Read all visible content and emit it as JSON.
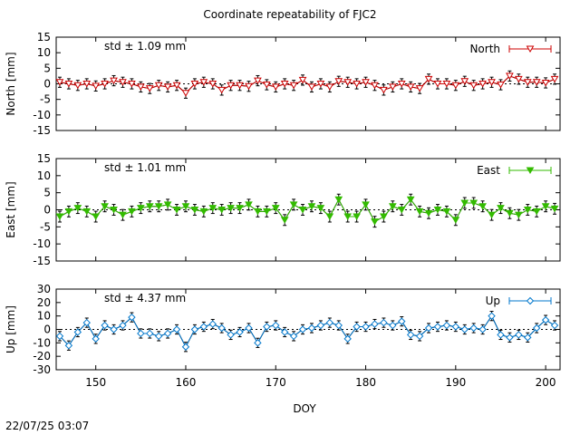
{
  "title": "Coordinate repeatability of FJC2",
  "timestamp": "22/07/25 03:07",
  "chart_data": [
    {
      "type": "line",
      "ylabel": "North [mm]",
      "ylim": [
        -15,
        15
      ],
      "yticks": [
        "15",
        "10",
        "5",
        "0",
        "-5",
        "-10",
        "-15"
      ],
      "xlim": [
        145.6,
        201.6
      ],
      "std_label": "std ± 1.09 mm",
      "legend": "North",
      "legend_position": "top-right",
      "color": "#cc0000",
      "marker": "triangle-down-open",
      "grid": false,
      "zero_line": true,
      "series": [
        {
          "name": "North",
          "x": [
            146,
            147,
            148,
            149,
            150,
            151,
            152,
            153,
            154,
            155,
            156,
            157,
            158,
            159,
            160,
            161,
            162,
            163,
            164,
            165,
            166,
            167,
            168,
            169,
            170,
            171,
            172,
            173,
            174,
            175,
            176,
            177,
            178,
            179,
            180,
            181,
            182,
            183,
            184,
            185,
            186,
            187,
            188,
            189,
            190,
            191,
            192,
            193,
            194,
            195,
            196,
            197,
            198,
            199,
            200,
            201
          ],
          "y": [
            0.5,
            0,
            -0.5,
            0,
            -0.7,
            0,
            1,
            0.5,
            0,
            -1,
            -1.5,
            -0.5,
            -1,
            -0.5,
            -3,
            0,
            0.5,
            0,
            -2,
            -0.5,
            -0.5,
            -0.8,
            1,
            -0.3,
            -1,
            0,
            -0.5,
            1.2,
            -1,
            0,
            -1,
            0.8,
            0.5,
            0,
            0.5,
            -0.5,
            -2,
            -1,
            0,
            -1,
            -1.5,
            1.5,
            0,
            0,
            -0.5,
            0.8,
            -0.5,
            0,
            0.5,
            -0.3,
            2.5,
            1.5,
            0.5,
            0.5,
            0.3,
            1.5
          ]
        }
      ]
    },
    {
      "type": "line",
      "ylabel": "East [mm]",
      "ylim": [
        -15,
        15
      ],
      "yticks": [
        "15",
        "10",
        "5",
        "0",
        "-5",
        "-10",
        "-15"
      ],
      "xlim": [
        145.6,
        201.6
      ],
      "std_label": "std ± 1.01 mm",
      "legend": "East",
      "legend_position": "top-right",
      "color": "#33bb00",
      "marker": "triangle-down-filled",
      "grid": false,
      "zero_line": true,
      "series": [
        {
          "name": "East",
          "x": [
            146,
            147,
            148,
            149,
            150,
            151,
            152,
            153,
            154,
            155,
            156,
            157,
            158,
            159,
            160,
            161,
            162,
            163,
            164,
            165,
            166,
            167,
            168,
            169,
            170,
            171,
            172,
            173,
            174,
            175,
            176,
            177,
            178,
            179,
            180,
            181,
            182,
            183,
            184,
            185,
            186,
            187,
            188,
            189,
            190,
            191,
            192,
            193,
            194,
            195,
            196,
            197,
            198,
            199,
            200,
            201
          ],
          "y": [
            -2,
            -0.5,
            0.5,
            -0.5,
            -2,
            1,
            0,
            -1.5,
            -0.5,
            0.5,
            1,
            1,
            1.5,
            0,
            1,
            0,
            -0.5,
            0.5,
            0,
            0.5,
            0.5,
            1.5,
            -0.5,
            -0.5,
            0.5,
            -3,
            1.5,
            0,
            1,
            0.5,
            -2,
            3,
            -2,
            -2,
            1.5,
            -3.5,
            -2,
            1,
            0,
            3,
            -0.5,
            -1,
            0,
            -0.5,
            -3,
            2,
            2,
            1,
            -1.5,
            0.5,
            -1,
            -1.5,
            0,
            -0.5,
            1,
            0.3
          ]
        }
      ]
    },
    {
      "type": "line",
      "ylabel": "Up [mm]",
      "ylim": [
        -30,
        30
      ],
      "yticks": [
        "30",
        "20",
        "10",
        "0",
        "-10",
        "-20",
        "-30"
      ],
      "xlim": [
        145.6,
        201.6
      ],
      "std_label": "std ± 4.37 mm",
      "legend": "Up",
      "legend_position": "top-right",
      "color": "#0077cc",
      "marker": "diamond-open",
      "grid": false,
      "zero_line": true,
      "series": [
        {
          "name": "Up",
          "x": [
            146,
            147,
            148,
            149,
            150,
            151,
            152,
            153,
            154,
            155,
            156,
            157,
            158,
            159,
            160,
            161,
            162,
            163,
            164,
            165,
            166,
            167,
            168,
            169,
            170,
            171,
            172,
            173,
            174,
            175,
            176,
            177,
            178,
            179,
            180,
            181,
            182,
            183,
            184,
            185,
            186,
            187,
            188,
            189,
            190,
            191,
            192,
            193,
            194,
            195,
            196,
            197,
            198,
            199,
            200,
            201
          ],
          "y": [
            -5,
            -12,
            -2,
            5,
            -7,
            3,
            0,
            3,
            9,
            -3,
            -3,
            -5,
            -3,
            0,
            -13,
            0,
            2,
            4,
            1,
            -4,
            -2,
            1,
            -10,
            2,
            3,
            -2,
            -5,
            0,
            1,
            3,
            5,
            3,
            -7,
            2,
            2,
            4,
            5,
            3,
            6,
            -4,
            -5,
            1,
            2,
            3,
            2,
            0,
            1,
            0,
            10,
            -4,
            -6,
            -4,
            -6,
            1,
            7,
            3
          ]
        }
      ]
    }
  ],
  "xaxis": {
    "xlabel": "DOY",
    "xticks": [
      "150",
      "160",
      "170",
      "180",
      "190",
      "200"
    ]
  }
}
